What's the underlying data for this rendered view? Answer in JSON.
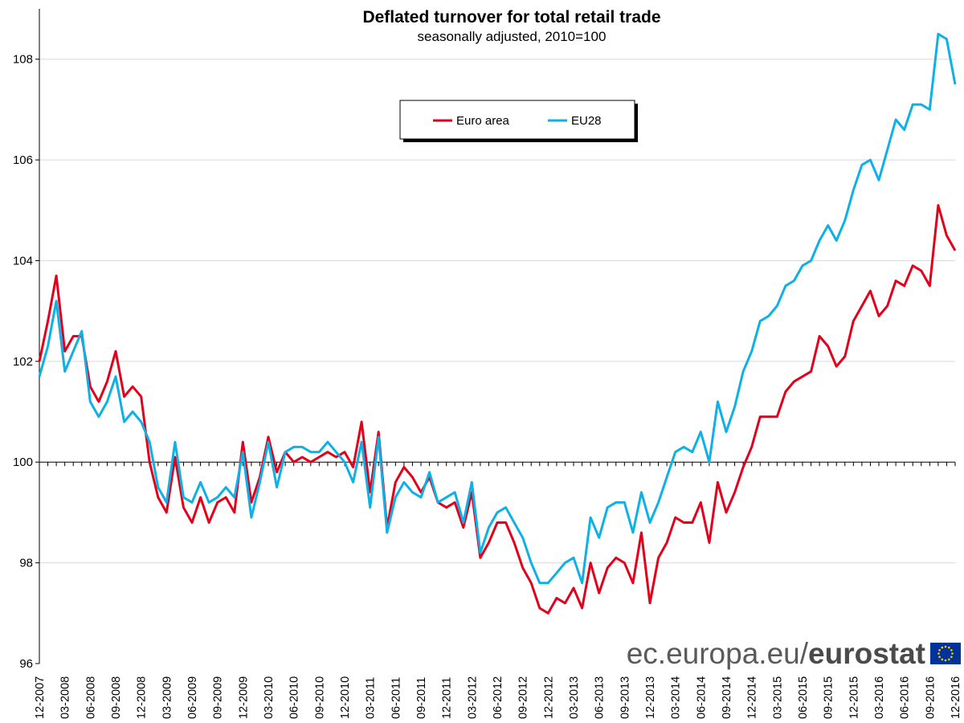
{
  "chart_data": {
    "type": "line",
    "title": "Deflated turnover for total retail trade",
    "subtitle": "seasonally adjusted, 2010=100",
    "ylim": [
      96,
      109
    ],
    "yticks": [
      96,
      98,
      100,
      102,
      104,
      106,
      108
    ],
    "grid": "horizontal",
    "legend_position": "top-center",
    "x_labels": [
      "12-2007",
      "03-2008",
      "06-2008",
      "09-2008",
      "12-2008",
      "03-2009",
      "06-2009",
      "09-2009",
      "12-2009",
      "03-2010",
      "06-2010",
      "09-2010",
      "12-2010",
      "03-2011",
      "06-2011",
      "09-2011",
      "12-2011",
      "03-2012",
      "06-2012",
      "09-2012",
      "12-2012",
      "03-2013",
      "06-2013",
      "09-2013",
      "12-2013",
      "03-2014",
      "06-2014",
      "09-2014",
      "12-2014",
      "03-2015",
      "06-2015",
      "09-2015",
      "12-2015",
      "03-2016",
      "06-2016",
      "09-2016",
      "12-2016"
    ],
    "series": [
      {
        "name": "Euro area",
        "color": "#e3001b",
        "values": [
          102.0,
          102.8,
          103.7,
          102.2,
          102.5,
          102.5,
          101.5,
          101.2,
          101.6,
          102.2,
          101.3,
          101.5,
          101.3,
          100.0,
          99.3,
          99.0,
          100.1,
          99.1,
          98.8,
          99.3,
          98.8,
          99.2,
          99.3,
          99.0,
          100.4,
          99.2,
          99.7,
          100.5,
          99.8,
          100.2,
          100.0,
          100.1,
          100.0,
          100.1,
          100.2,
          100.1,
          100.2,
          99.9,
          100.8,
          99.4,
          100.6,
          98.7,
          99.6,
          99.9,
          99.7,
          99.4,
          99.7,
          99.2,
          99.1,
          99.2,
          98.7,
          99.4,
          98.1,
          98.4,
          98.8,
          98.8,
          98.4,
          97.9,
          97.6,
          97.1,
          97.0,
          97.3,
          97.2,
          97.5,
          97.1,
          98.0,
          97.4,
          97.9,
          98.1,
          98.0,
          97.6,
          98.6,
          97.2,
          98.1,
          98.4,
          98.9,
          98.8,
          98.8,
          99.2,
          98.4,
          99.6,
          99.0,
          99.4,
          99.9,
          100.3,
          100.9,
          100.9,
          100.9,
          101.4,
          101.6,
          101.7,
          101.8,
          102.5,
          102.3,
          101.9,
          102.1,
          102.8,
          103.1,
          103.4,
          102.9,
          103.1,
          103.6,
          103.5,
          103.9,
          103.8,
          103.5,
          105.1,
          104.5,
          104.2
        ]
      },
      {
        "name": "EU28",
        "color": "#0eb0e8",
        "values": [
          101.7,
          102.3,
          103.2,
          101.8,
          102.2,
          102.6,
          101.2,
          100.9,
          101.2,
          101.7,
          100.8,
          101.0,
          100.8,
          100.4,
          99.5,
          99.2,
          100.4,
          99.3,
          99.2,
          99.6,
          99.2,
          99.3,
          99.5,
          99.3,
          100.2,
          98.9,
          99.6,
          100.4,
          99.5,
          100.2,
          100.3,
          100.3,
          100.2,
          100.2,
          100.4,
          100.2,
          100.0,
          99.6,
          100.4,
          99.1,
          100.5,
          98.6,
          99.3,
          99.6,
          99.4,
          99.3,
          99.8,
          99.2,
          99.3,
          99.4,
          98.8,
          99.6,
          98.2,
          98.7,
          99.0,
          99.1,
          98.8,
          98.5,
          98.0,
          97.6,
          97.6,
          97.8,
          98.0,
          98.1,
          97.6,
          98.9,
          98.5,
          99.1,
          99.2,
          99.2,
          98.6,
          99.4,
          98.8,
          99.2,
          99.7,
          100.2,
          100.3,
          100.2,
          100.6,
          100.0,
          101.2,
          100.6,
          101.1,
          101.8,
          102.2,
          102.8,
          102.9,
          103.1,
          103.5,
          103.6,
          103.9,
          104.0,
          104.4,
          104.7,
          104.4,
          104.8,
          105.4,
          105.9,
          106.0,
          105.6,
          106.2,
          106.8,
          106.6,
          107.1,
          107.1,
          107.0,
          108.5,
          108.4,
          107.5
        ]
      }
    ]
  },
  "branding": {
    "site_text": "ec.europa.eu/",
    "brand_text": "eurostat",
    "flag_blue": "#003399",
    "flag_star": "#ffcc00"
  }
}
